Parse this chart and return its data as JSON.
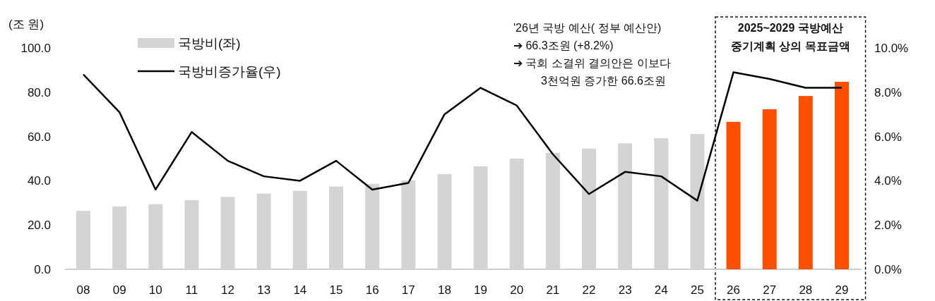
{
  "chart_data": {
    "type": "bar",
    "ylabel": "(조 원)",
    "categories": [
      "08",
      "09",
      "10",
      "11",
      "12",
      "13",
      "14",
      "15",
      "16",
      "17",
      "18",
      "19",
      "20",
      "21",
      "22",
      "23",
      "24",
      "25",
      "26",
      "27",
      "28",
      "29"
    ],
    "series": [
      {
        "name": "국방비(좌)",
        "colors": [
          "#d4d4d4",
          "#d4d4d4",
          "#d4d4d4",
          "#d4d4d4",
          "#d4d4d4",
          "#d4d4d4",
          "#d4d4d4",
          "#d4d4d4",
          "#d4d4d4",
          "#d4d4d4",
          "#d4d4d4",
          "#d4d4d4",
          "#d4d4d4",
          "#d4d4d4",
          "#d4d4d4",
          "#d4d4d4",
          "#d4d4d4",
          "#d4d4d4",
          "#ff5000",
          "#ff5000",
          "#ff5000",
          "#ff5000"
        ],
        "values": [
          26.4,
          28.4,
          29.4,
          31.2,
          32.7,
          34.2,
          35.4,
          37.4,
          38.6,
          40.1,
          43.0,
          46.5,
          50.0,
          52.6,
          54.5,
          56.9,
          59.2,
          61.1,
          66.6,
          72.3,
          78.3,
          84.7
        ]
      },
      {
        "name": "국방비증가율(우)",
        "type": "line",
        "axis": "y2",
        "color": "#000000",
        "values": [
          8.8,
          7.1,
          3.6,
          6.2,
          4.9,
          4.2,
          4.0,
          4.9,
          3.6,
          3.9,
          7.0,
          8.2,
          7.4,
          5.2,
          3.4,
          4.4,
          4.2,
          3.1,
          8.9,
          8.6,
          8.2,
          8.2
        ]
      }
    ],
    "ylim": [
      0,
      100
    ],
    "yticks": [
      {
        "value": 0,
        "label": "0.0"
      },
      {
        "value": 20,
        "label": "20.0"
      },
      {
        "value": 40,
        "label": "40.0"
      },
      {
        "value": 60,
        "label": "60.0"
      },
      {
        "value": 80,
        "label": "80.0"
      },
      {
        "value": 100,
        "label": "100.0"
      }
    ],
    "y2lim": [
      0,
      10
    ],
    "y2ticks": [
      {
        "value": 0,
        "label": "0.0%"
      },
      {
        "value": 2,
        "label": "2.0%"
      },
      {
        "value": 4,
        "label": "4.0%"
      },
      {
        "value": 6,
        "label": "6.0%"
      },
      {
        "value": 8,
        "label": "8.0%"
      },
      {
        "value": 10,
        "label": "10.0%"
      }
    ],
    "annotations": [
      "2025~2029 국방예산 중기계획 상의 목표금액",
      "'26년 국방 예산( 정부 예산안)",
      "➔  66.3조원 (+8.2%)",
      "➔  국회 소결위 결의안은 이보다 3천억원 증가한 66.6조원"
    ],
    "legend": "top left"
  }
}
